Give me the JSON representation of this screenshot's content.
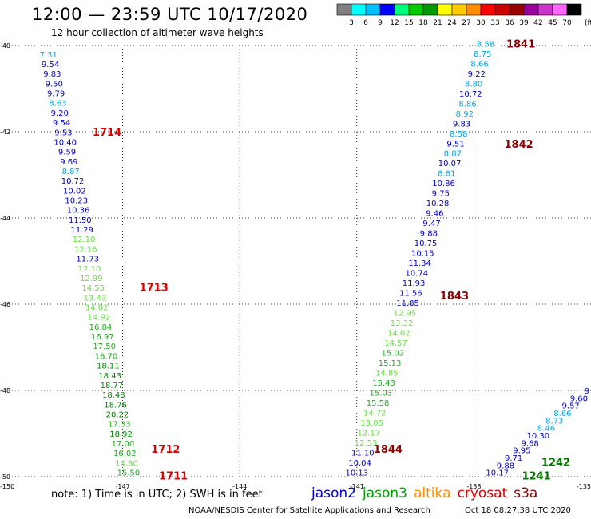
{
  "title": "12:00 — 23:59 UTC 10/17/2020",
  "subtitle": "12 hour collection of altimeter wave heights",
  "footer": {
    "note": "note: 1) Time is in UTC; 2) SWH is in feet",
    "credit": "NOAA/NESDIS Center for Satellite Applications and Research",
    "date": "Oct 18 08:27:38 UTC 2020"
  },
  "legend": [
    {
      "label": "jason2",
      "color": "#0000cc"
    },
    {
      "label": "jason3",
      "color": "#00a000"
    },
    {
      "label": "altika",
      "color": "#ff8c00"
    },
    {
      "label": "cryosat",
      "color": "#dd0000"
    },
    {
      "label": "s3a",
      "color": "#8b0000"
    }
  ],
  "colorbar": {
    "ticks": [
      "3",
      "6",
      "9",
      "12",
      "15",
      "18",
      "21",
      "24",
      "27",
      "30",
      "33",
      "36",
      "39",
      "42",
      "45",
      "70"
    ],
    "unit": "(ft)",
    "colors": [
      "#808080",
      "#00ffff",
      "#00bfff",
      "#0000ff",
      "#00ff7f",
      "#00cc00",
      "#009900",
      "#ffff00",
      "#ffcc00",
      "#ff8c00",
      "#ff0000",
      "#cc0000",
      "#990000",
      "#990099",
      "#cc33cc",
      "#ff66ff",
      "#000000"
    ]
  },
  "chart_data": {
    "type": "scatter",
    "x_ticks": [
      -150,
      -147,
      -144,
      -141,
      -138,
      -135
    ],
    "x_tick_labels": [
      "-150",
      "-147",
      "-144",
      "-141",
      "-138",
      "-135"
    ],
    "y_ticks": [
      -40,
      -42,
      -44,
      -46,
      -48,
      -50
    ],
    "y_tick_labels": [
      "-40",
      "-42",
      "-44",
      "-46",
      "-48",
      "-50"
    ],
    "xlim": [
      -150,
      -135
    ],
    "ylim": [
      -50,
      -40
    ],
    "grid": true,
    "tracks": [
      {
        "name": "track-1",
        "start": [
          -148.9,
          -40.2
        ],
        "end": [
          -146.85,
          -49.9
        ],
        "values": [
          7.31,
          9.54,
          9.83,
          9.5,
          9.79,
          8.63,
          9.2,
          9.54,
          9.53,
          10.4,
          9.59,
          9.69,
          8.87,
          10.72,
          10.02,
          10.23,
          10.36,
          11.5,
          11.29,
          12.1,
          12.16,
          11.73,
          12.1,
          12.99,
          14.55,
          13.43,
          14.02,
          14.92,
          16.84,
          16.97,
          17.5,
          16.7,
          18.11,
          18.43,
          18.77,
          18.48,
          18.76,
          20.22,
          17.33,
          18.92,
          17.0,
          16.02,
          14.8,
          15.5
        ]
      },
      {
        "name": "track-2",
        "start": [
          -137.7,
          -39.95
        ],
        "end": [
          -141.0,
          -49.9
        ],
        "values": [
          8.58,
          8.75,
          8.66,
          9.22,
          8.8,
          10.72,
          8.86,
          8.92,
          9.83,
          8.58,
          9.51,
          8.87,
          10.07,
          8.81,
          10.86,
          9.75,
          10.28,
          9.46,
          9.47,
          9.88,
          10.75,
          10.15,
          11.34,
          10.74,
          11.93,
          11.56,
          11.85,
          12.95,
          13.32,
          14.02,
          14.57,
          15.02,
          15.13,
          14.85,
          15.43,
          15.03,
          15.58,
          14.72,
          13.05,
          12.17,
          12.53,
          11.1,
          10.04,
          10.13
        ]
      },
      {
        "name": "track-3",
        "start": [
          -135.1,
          -48.0
        ],
        "end": [
          -137.4,
          -49.9
        ],
        "values": [
          9,
          9.6,
          9.57,
          8.66,
          8.73,
          8.46,
          10.3,
          9.68,
          9.95,
          9.71,
          9.88,
          10.17
        ]
      }
    ],
    "annotations": [
      {
        "text": "1841",
        "x": -136.8,
        "y": -39.95,
        "color": "#8b0000"
      },
      {
        "text": "1842",
        "x": -136.85,
        "y": -42.28,
        "color": "#8b0000"
      },
      {
        "text": "1843",
        "x": -138.5,
        "y": -45.8,
        "color": "#8b0000"
      },
      {
        "text": "1844",
        "x": -140.2,
        "y": -49.35,
        "color": "#8b0000"
      },
      {
        "text": "1714",
        "x": -147.4,
        "y": -42.0,
        "color": "#dd0000"
      },
      {
        "text": "1713",
        "x": -146.2,
        "y": -45.6,
        "color": "#dd0000"
      },
      {
        "text": "1712",
        "x": -145.9,
        "y": -49.35,
        "color": "#dd0000"
      },
      {
        "text": "1711",
        "x": -145.7,
        "y": -49.97,
        "color": "#dd0000"
      },
      {
        "text": "1242",
        "x": -135.9,
        "y": -49.66,
        "color": "#007700"
      },
      {
        "text": "1241",
        "x": -136.4,
        "y": -49.97,
        "color": "#007700"
      }
    ]
  }
}
